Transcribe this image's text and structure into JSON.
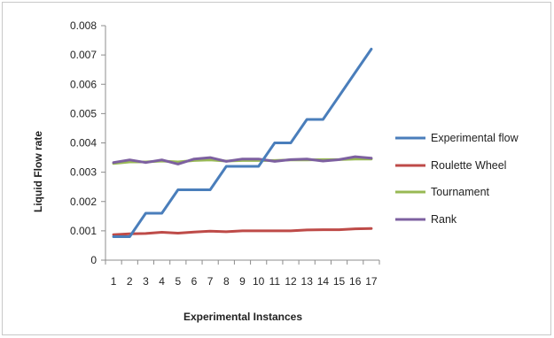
{
  "chart_data": {
    "type": "line",
    "title": "",
    "xlabel": "Experimental Instances",
    "ylabel": "Liquid Flow rate",
    "ylim": [
      0,
      0.008
    ],
    "yticks": [
      "0",
      "0.001",
      "0.002",
      "0.003",
      "0.004",
      "0.005",
      "0.006",
      "0.007",
      "0.008"
    ],
    "yticks_values": [
      0,
      0.001,
      0.002,
      0.003,
      0.004,
      0.005,
      0.006,
      0.007,
      0.008
    ],
    "categories": [
      "1",
      "2",
      "3",
      "4",
      "5",
      "6",
      "7",
      "8",
      "9",
      "10",
      "11",
      "12",
      "13",
      "14",
      "15",
      "16",
      "17"
    ],
    "grid": false,
    "legend_position": "right",
    "series": [
      {
        "name": "Experimental flow",
        "color": "#4a7ebb",
        "values": [
          0.0008,
          0.0008,
          0.0016,
          0.0016,
          0.0024,
          0.0024,
          0.0024,
          0.0032,
          0.0032,
          0.0032,
          0.004,
          0.004,
          0.0048,
          0.0048,
          0.0056,
          0.0064,
          0.0072
        ]
      },
      {
        "name": "Roulette Wheel",
        "color": "#be4b48",
        "values": [
          0.00087,
          0.0009,
          0.00091,
          0.00095,
          0.00092,
          0.00096,
          0.00099,
          0.00097,
          0.001,
          0.001,
          0.001,
          0.001,
          0.00103,
          0.00104,
          0.00104,
          0.00107,
          0.00108
        ]
      },
      {
        "name": "Tournament",
        "color": "#98b954",
        "values": [
          0.0033,
          0.00335,
          0.00335,
          0.00338,
          0.00335,
          0.0034,
          0.00342,
          0.00338,
          0.0034,
          0.0034,
          0.0034,
          0.00342,
          0.00342,
          0.00343,
          0.00343,
          0.00345,
          0.00345
        ]
      },
      {
        "name": "Rank",
        "color": "#7d60a0",
        "values": [
          0.00333,
          0.00342,
          0.00333,
          0.00342,
          0.00328,
          0.00345,
          0.0035,
          0.00337,
          0.00345,
          0.00345,
          0.00337,
          0.00343,
          0.00345,
          0.00338,
          0.00343,
          0.00353,
          0.00348
        ]
      }
    ]
  }
}
